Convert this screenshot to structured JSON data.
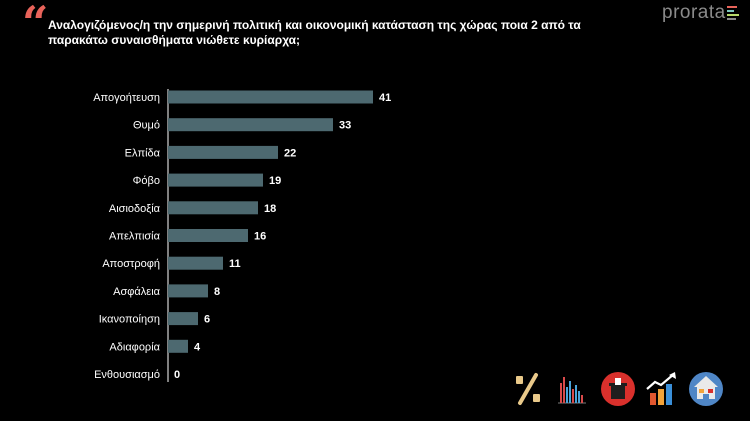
{
  "header": {
    "quote_mark": "“",
    "question": "Αναλογιζόμενος/η την σημερινή πολιτική και οικονομική κατάσταση της χώρας ποια 2 από τα παρακάτω συναισθήματα νιώθετε κυρίαρχα;",
    "brand": "prorata"
  },
  "colors": {
    "background": "#000000",
    "bar": "#4d6970",
    "quote": "#e8635a",
    "axis": "#ffffff",
    "brand_bars": [
      "#e8635a",
      "#7ec8c0",
      "#b7d96a",
      "#8a8a8a"
    ]
  },
  "chart_data": {
    "type": "bar",
    "orientation": "horizontal",
    "categories": [
      "Απογοήτευση",
      "Θυμό",
      "Ελπίδα",
      "Φόβο",
      "Αισιοδοξία",
      "Απελπισία",
      "Αποστροφή",
      "Ασφάλεια",
      "Ικανοποίηση",
      "Αδιαφορία",
      "Ενθουσιασμό"
    ],
    "values": [
      41,
      33,
      22,
      19,
      18,
      16,
      11,
      8,
      6,
      4,
      0
    ],
    "data_labels": true,
    "title": "",
    "xlabel": "",
    "ylabel": "",
    "xlim": [
      0,
      50
    ],
    "grid": false,
    "legend": "none"
  },
  "footer_icons": [
    "percent-icon",
    "bar-chart-icon",
    "ballot-box-icon",
    "trend-up-icon",
    "house-icon"
  ]
}
